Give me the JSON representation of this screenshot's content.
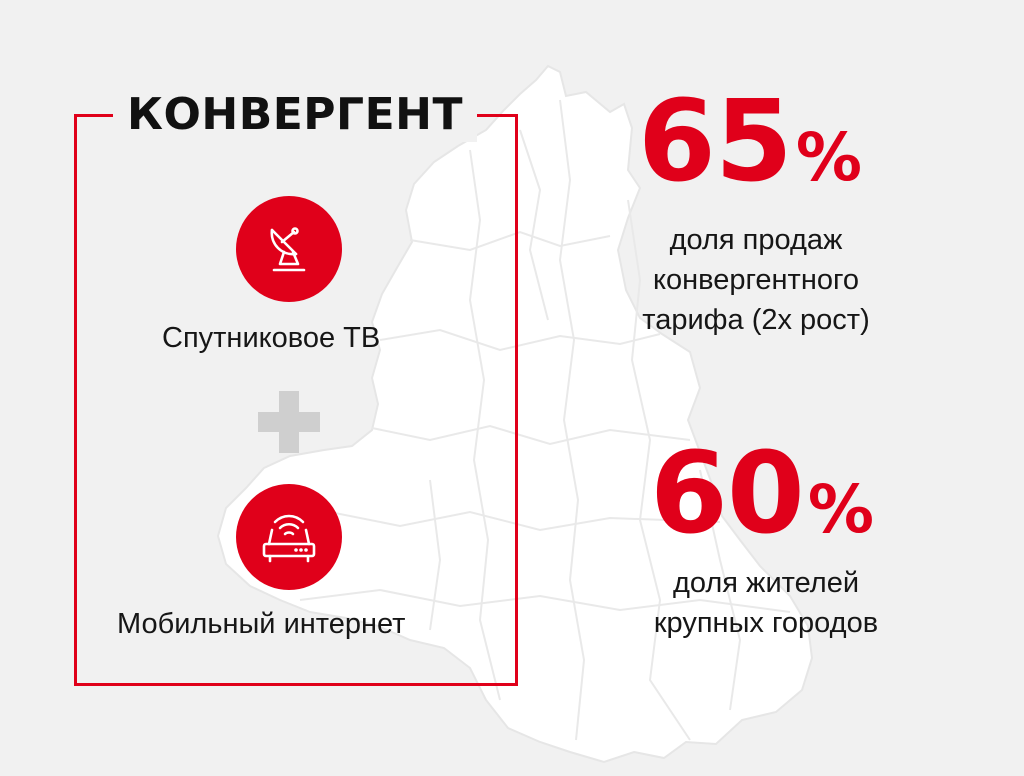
{
  "box_title": "КОНВЕРГЕНТ",
  "services": [
    {
      "icon": "satellite-dish-icon",
      "label": "Спутниковое ТВ"
    },
    {
      "icon": "wifi-router-icon",
      "label": "Мобильный интернет"
    }
  ],
  "plus_icon": "plus-icon",
  "stats": [
    {
      "value": "65",
      "unit": "%",
      "lines": [
        "доля продаж",
        "конвергентного",
        "тарифа (2х рост)"
      ]
    },
    {
      "value": "60",
      "unit": "%",
      "lines": [
        "доля жителей",
        "крупных городов"
      ]
    }
  ],
  "colors": {
    "accent": "#e0001a",
    "background": "#f1f1f1",
    "map": "#ffffff",
    "plus": "#cfcfcf",
    "text": "#161616"
  }
}
